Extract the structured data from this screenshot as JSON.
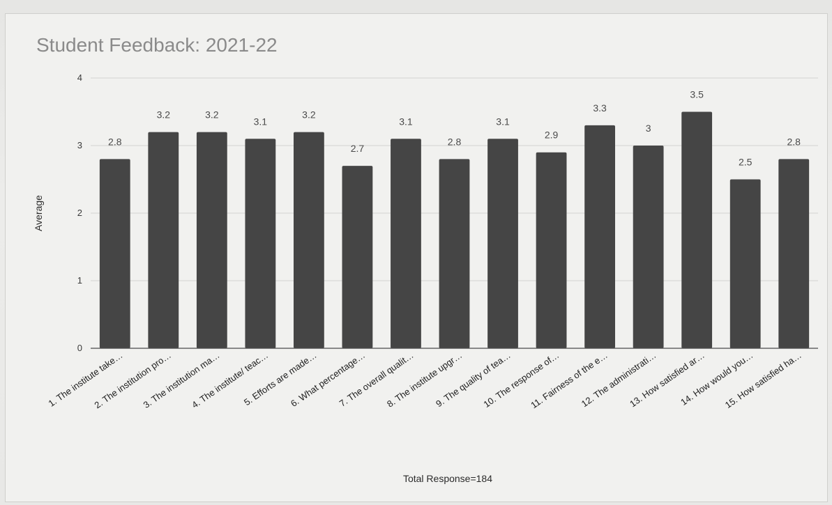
{
  "chart_data": {
    "type": "bar",
    "title": "Student Feedback: 2021-22",
    "xlabel": "Total Response=184",
    "ylabel": "Average",
    "ylim": [
      0,
      4
    ],
    "yticks": [
      "0",
      "1",
      "2",
      "3",
      "4"
    ],
    "grid": true,
    "categories": [
      "1. The institute take…",
      "2. The institution pro…",
      "3. The institution ma…",
      "4. The institute/ teac…",
      "5. Efforts are made…",
      "6. What percentage…",
      "7. The overall qualit…",
      "8. The institute upgr…",
      "9. The quality of tea…",
      "10. The response of…",
      "11. Fairness of the e…",
      "12. The administrati…",
      "13. How satisfied ar…",
      "14. How would you…",
      "15. How satisfied ha…"
    ],
    "values": [
      2.8,
      3.2,
      3.2,
      3.1,
      3.2,
      2.7,
      3.1,
      2.8,
      3.1,
      2.9,
      3.3,
      3,
      3.5,
      2.5,
      2.8
    ],
    "data_labels": [
      "2.8",
      "3.2",
      "3.2",
      "3.1",
      "3.2",
      "2.7",
      "3.1",
      "2.8",
      "3.1",
      "2.9",
      "3.3",
      "3",
      "3.5",
      "2.5",
      "2.8"
    ],
    "bar_color": "#454545"
  }
}
